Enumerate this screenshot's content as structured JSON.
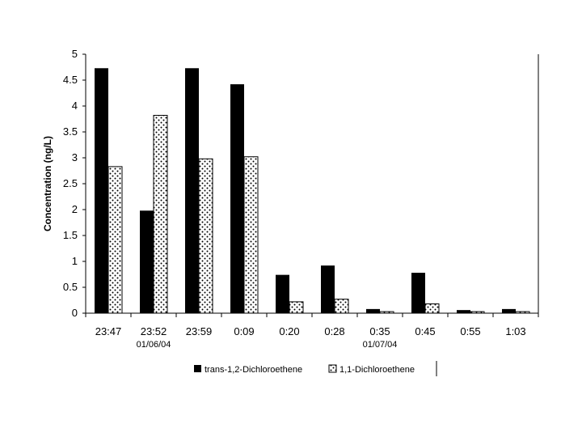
{
  "chart_data": {
    "type": "bar",
    "title": "",
    "xlabel": "",
    "ylabel": "Concentration (ng/L)",
    "ylim": [
      0,
      5
    ],
    "yticks": [
      "0",
      "0.5",
      "1",
      "1.5",
      "2",
      "2.5",
      "3",
      "3.5",
      "4",
      "4.5",
      "5"
    ],
    "categories": [
      "23:47",
      "23:52",
      "23:59",
      "0:09",
      "0:20",
      "0:28",
      "0:35",
      "0:45",
      "0:55",
      "1:03"
    ],
    "date_labels": [
      {
        "text": "01/06/04",
        "category": "23:52"
      },
      {
        "text": "01/07/04",
        "category": "0:35"
      }
    ],
    "series": [
      {
        "name": "trans-1,2-Dichloroethene",
        "style": "solid-black",
        "values": [
          4.73,
          1.98,
          4.73,
          4.42,
          0.74,
          0.92,
          0.08,
          0.78,
          0.06,
          0.08
        ]
      },
      {
        "name": "1,1-Dichloroethene",
        "style": "dotted",
        "values": [
          2.83,
          3.82,
          2.98,
          3.02,
          0.22,
          0.27,
          0.03,
          0.18,
          0.03,
          0.03
        ]
      }
    ],
    "grid": false,
    "legend_position": "bottom"
  }
}
